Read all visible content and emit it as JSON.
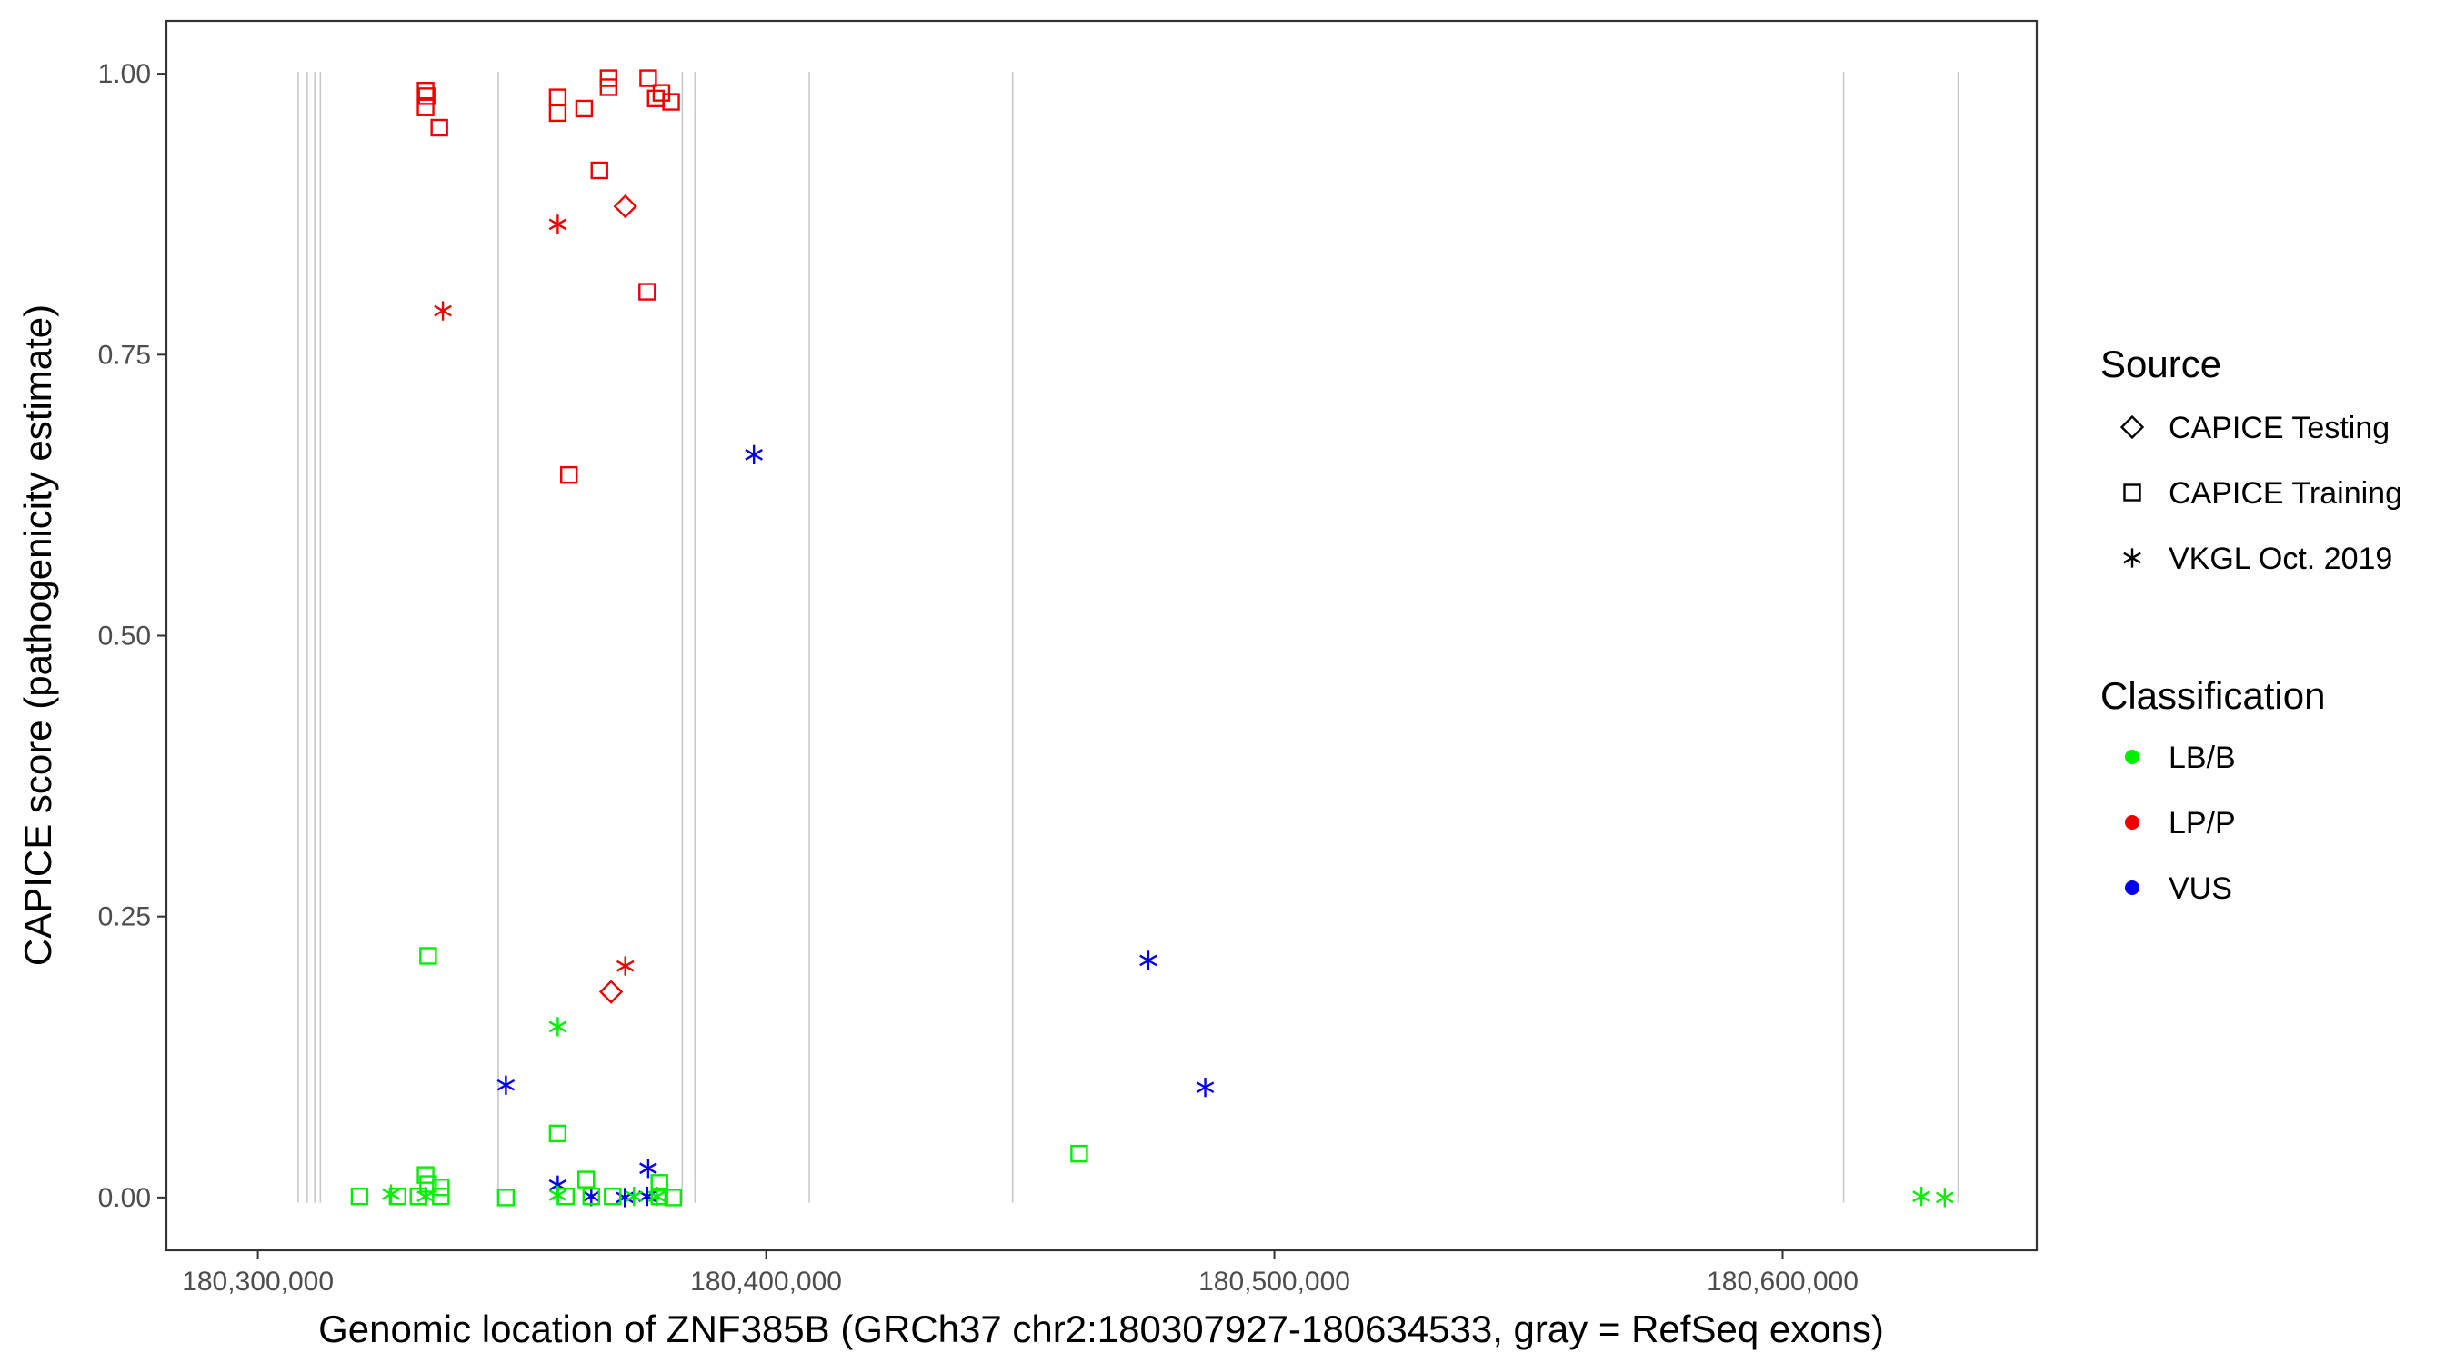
{
  "chart_data": {
    "type": "scatter",
    "title": "",
    "xlabel": "Genomic location of ZNF385B (GRCh37 chr2:180307927-180634533, gray = RefSeq exons)",
    "ylabel": "CAPICE score (pathogenicity estimate)",
    "xlim": [
      180282000,
      180650000
    ],
    "ylim": [
      -0.047,
      1.047
    ],
    "x_ticks": [
      180300000,
      180400000,
      180500000,
      180600000
    ],
    "x_tick_labels": [
      "180,300,000",
      "180,400,000",
      "180,500,000",
      "180,600,000"
    ],
    "y_ticks": [
      0,
      0.25,
      0.5,
      0.75,
      1
    ],
    "y_tick_labels": [
      "0.00",
      "0.25",
      "0.50",
      "0.75",
      "1.00"
    ],
    "grid": false,
    "exon_lines": [
      180307927,
      180309700,
      180311200,
      180312300,
      180347300,
      180383500,
      180386000,
      180408500,
      180448500,
      180612000,
      180634533
    ],
    "legend": {
      "placement": "right",
      "source_title": "Source",
      "source_entries": [
        {
          "label": "CAPICE Testing",
          "shape": "diamond"
        },
        {
          "label": "CAPICE Training",
          "shape": "square"
        },
        {
          "label": "VKGL Oct. 2019",
          "shape": "asterisk"
        }
      ],
      "class_title": "Classification",
      "class_entries": [
        {
          "label": "LB/B",
          "color": "#00ee00"
        },
        {
          "label": "LP/P",
          "color": "#ee0000"
        },
        {
          "label": "VUS",
          "color": "#0000ee"
        }
      ]
    },
    "colors": {
      "LB/B": "#00ee00",
      "LP/P": "#ee0000",
      "VUS": "#0000ee"
    },
    "points": [
      {
        "x": 180333000,
        "y": 0.985,
        "shape": "square",
        "class": "LP/P"
      },
      {
        "x": 180333200,
        "y": 0.98,
        "shape": "square",
        "class": "LP/P"
      },
      {
        "x": 180333000,
        "y": 0.97,
        "shape": "square",
        "class": "LP/P"
      },
      {
        "x": 180335700,
        "y": 0.952,
        "shape": "square",
        "class": "LP/P"
      },
      {
        "x": 180359000,
        "y": 0.979,
        "shape": "square",
        "class": "LP/P"
      },
      {
        "x": 180359000,
        "y": 0.965,
        "shape": "square",
        "class": "LP/P"
      },
      {
        "x": 180364200,
        "y": 0.969,
        "shape": "square",
        "class": "LP/P"
      },
      {
        "x": 180369000,
        "y": 0.996,
        "shape": "square",
        "class": "LP/P"
      },
      {
        "x": 180369000,
        "y": 0.988,
        "shape": "square",
        "class": "LP/P"
      },
      {
        "x": 180376800,
        "y": 0.996,
        "shape": "square",
        "class": "LP/P"
      },
      {
        "x": 180378300,
        "y": 0.978,
        "shape": "square",
        "class": "LP/P"
      },
      {
        "x": 180379400,
        "y": 0.983,
        "shape": "square",
        "class": "LP/P"
      },
      {
        "x": 180381300,
        "y": 0.975,
        "shape": "square",
        "class": "LP/P"
      },
      {
        "x": 180367200,
        "y": 0.914,
        "shape": "square",
        "class": "LP/P"
      },
      {
        "x": 180376600,
        "y": 0.806,
        "shape": "square",
        "class": "LP/P"
      },
      {
        "x": 180361200,
        "y": 0.643,
        "shape": "square",
        "class": "LP/P"
      },
      {
        "x": 180372300,
        "y": 0.882,
        "shape": "diamond",
        "class": "LP/P"
      },
      {
        "x": 180369500,
        "y": 0.183,
        "shape": "diamond",
        "class": "LP/P"
      },
      {
        "x": 180359000,
        "y": 0.866,
        "shape": "asterisk",
        "class": "LP/P"
      },
      {
        "x": 180336400,
        "y": 0.789,
        "shape": "asterisk",
        "class": "LP/P"
      },
      {
        "x": 180372300,
        "y": 0.206,
        "shape": "asterisk",
        "class": "LP/P"
      },
      {
        "x": 180397600,
        "y": 0.661,
        "shape": "asterisk",
        "class": "VUS"
      },
      {
        "x": 180475200,
        "y": 0.211,
        "shape": "asterisk",
        "class": "VUS"
      },
      {
        "x": 180486400,
        "y": 0.098,
        "shape": "asterisk",
        "class": "VUS"
      },
      {
        "x": 180348800,
        "y": 0.1,
        "shape": "asterisk",
        "class": "VUS"
      },
      {
        "x": 180359000,
        "y": 0.011,
        "shape": "asterisk",
        "class": "VUS"
      },
      {
        "x": 180376800,
        "y": 0.026,
        "shape": "asterisk",
        "class": "VUS"
      },
      {
        "x": 180365600,
        "y": 0.001,
        "shape": "asterisk",
        "class": "VUS"
      },
      {
        "x": 180372200,
        "y": 0.0,
        "shape": "asterisk",
        "class": "VUS"
      },
      {
        "x": 180376600,
        "y": 0.001,
        "shape": "asterisk",
        "class": "VUS"
      },
      {
        "x": 180333500,
        "y": 0.215,
        "shape": "square",
        "class": "LB/B"
      },
      {
        "x": 180359000,
        "y": 0.057,
        "shape": "square",
        "class": "LB/B"
      },
      {
        "x": 180461600,
        "y": 0.039,
        "shape": "square",
        "class": "LB/B"
      },
      {
        "x": 180364600,
        "y": 0.016,
        "shape": "square",
        "class": "LB/B"
      },
      {
        "x": 180333000,
        "y": 0.02,
        "shape": "square",
        "class": "LB/B"
      },
      {
        "x": 180333500,
        "y": 0.012,
        "shape": "square",
        "class": "LB/B"
      },
      {
        "x": 180336000,
        "y": 0.009,
        "shape": "square",
        "class": "LB/B"
      },
      {
        "x": 180379000,
        "y": 0.013,
        "shape": "square",
        "class": "LB/B"
      },
      {
        "x": 180320000,
        "y": 0.001,
        "shape": "square",
        "class": "LB/B"
      },
      {
        "x": 180327500,
        "y": 0.001,
        "shape": "square",
        "class": "LB/B"
      },
      {
        "x": 180331600,
        "y": 0.001,
        "shape": "square",
        "class": "LB/B"
      },
      {
        "x": 180336000,
        "y": 0.001,
        "shape": "square",
        "class": "LB/B"
      },
      {
        "x": 180348800,
        "y": 0.0,
        "shape": "square",
        "class": "LB/B"
      },
      {
        "x": 180360600,
        "y": 0.001,
        "shape": "square",
        "class": "LB/B"
      },
      {
        "x": 180365600,
        "y": 0.001,
        "shape": "square",
        "class": "LB/B"
      },
      {
        "x": 180369800,
        "y": 0.001,
        "shape": "square",
        "class": "LB/B"
      },
      {
        "x": 180379000,
        "y": 0.001,
        "shape": "square",
        "class": "LB/B"
      },
      {
        "x": 180381700,
        "y": 0.0,
        "shape": "square",
        "class": "LB/B"
      },
      {
        "x": 180359000,
        "y": 0.152,
        "shape": "asterisk",
        "class": "LB/B"
      },
      {
        "x": 180326200,
        "y": 0.003,
        "shape": "asterisk",
        "class": "LB/B"
      },
      {
        "x": 180333000,
        "y": 0.001,
        "shape": "asterisk",
        "class": "LB/B"
      },
      {
        "x": 180359000,
        "y": 0.002,
        "shape": "asterisk",
        "class": "LB/B"
      },
      {
        "x": 180374000,
        "y": 0.001,
        "shape": "asterisk",
        "class": "LB/B"
      },
      {
        "x": 180378500,
        "y": 0.001,
        "shape": "asterisk",
        "class": "LB/B"
      },
      {
        "x": 180627300,
        "y": 0.001,
        "shape": "asterisk",
        "class": "LB/B"
      },
      {
        "x": 180631900,
        "y": 0.0,
        "shape": "asterisk",
        "class": "LB/B"
      }
    ]
  }
}
